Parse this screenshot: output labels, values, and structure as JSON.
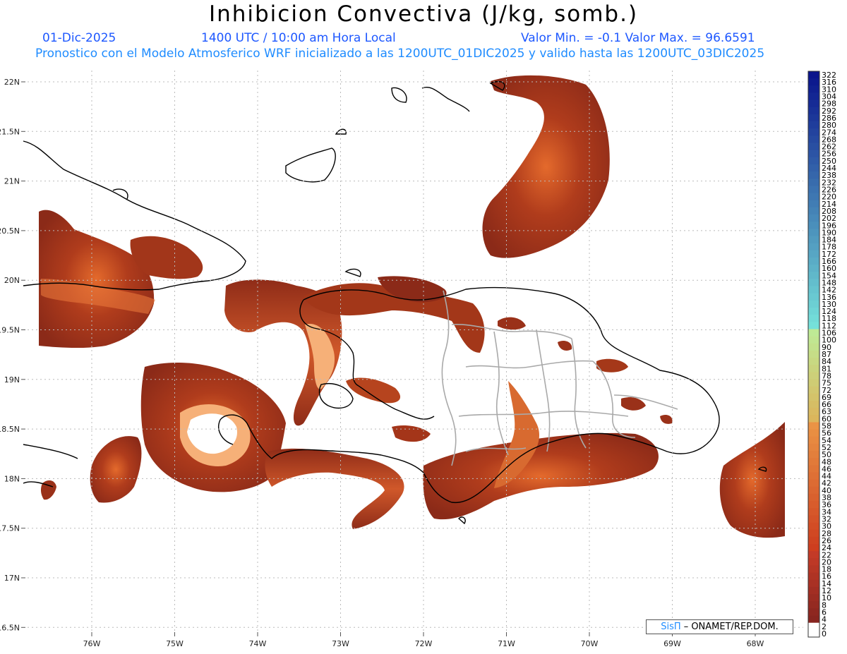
{
  "header": {
    "title": "Inhibicion Convectiva (J/kg, somb.)",
    "date": "01-Dic-2025",
    "time": "1400 UTC / 10:00 am Hora Local",
    "min_max": "Valor Min. = -0.1  Valor Max. = 96.6591",
    "forecast_info": "Pronostico con el Modelo Atmosferico WRF inicializado a las 1200UTC_01DIC2025 y valido hasta las  1200UTC_03DIC2025"
  },
  "map": {
    "lat_labels": [
      "22N",
      "21.5N",
      "21N",
      "20.5N",
      "20N",
      "19.5N",
      "19N",
      "18.5N",
      "18N",
      "17.5N",
      "17N",
      "16.5N"
    ],
    "lon_labels": [
      "76W",
      "75W",
      "74W",
      "73W",
      "72W",
      "71W",
      "70W",
      "69W",
      "68W"
    ],
    "field_colors": {
      "low": "#8b2a18",
      "mid": "#c64a20",
      "high": "#f07d3c",
      "peak": "#ffd6a6"
    },
    "coastline_color": "#000000",
    "province_border_color": "#a9a9a9"
  },
  "colorbar": {
    "labels": [
      "322",
      "316",
      "310",
      "304",
      "298",
      "292",
      "286",
      "280",
      "274",
      "268",
      "262",
      "256",
      "250",
      "244",
      "238",
      "232",
      "226",
      "220",
      "214",
      "208",
      "202",
      "196",
      "190",
      "184",
      "178",
      "172",
      "166",
      "160",
      "154",
      "148",
      "142",
      "136",
      "130",
      "124",
      "118",
      "112",
      "106",
      "100",
      "90",
      "87",
      "84",
      "81",
      "78",
      "75",
      "72",
      "69",
      "66",
      "63",
      "60",
      "58",
      "56",
      "54",
      "52",
      "50",
      "48",
      "46",
      "44",
      "42",
      "40",
      "38",
      "36",
      "34",
      "32",
      "30",
      "28",
      "26",
      "24",
      "22",
      "20",
      "18",
      "16",
      "14",
      "12",
      "10",
      "8",
      "6",
      "4",
      "2",
      "0"
    ]
  },
  "credit": {
    "symbol": "SisΠ",
    "text": "– ONAMET/REP.DOM."
  }
}
